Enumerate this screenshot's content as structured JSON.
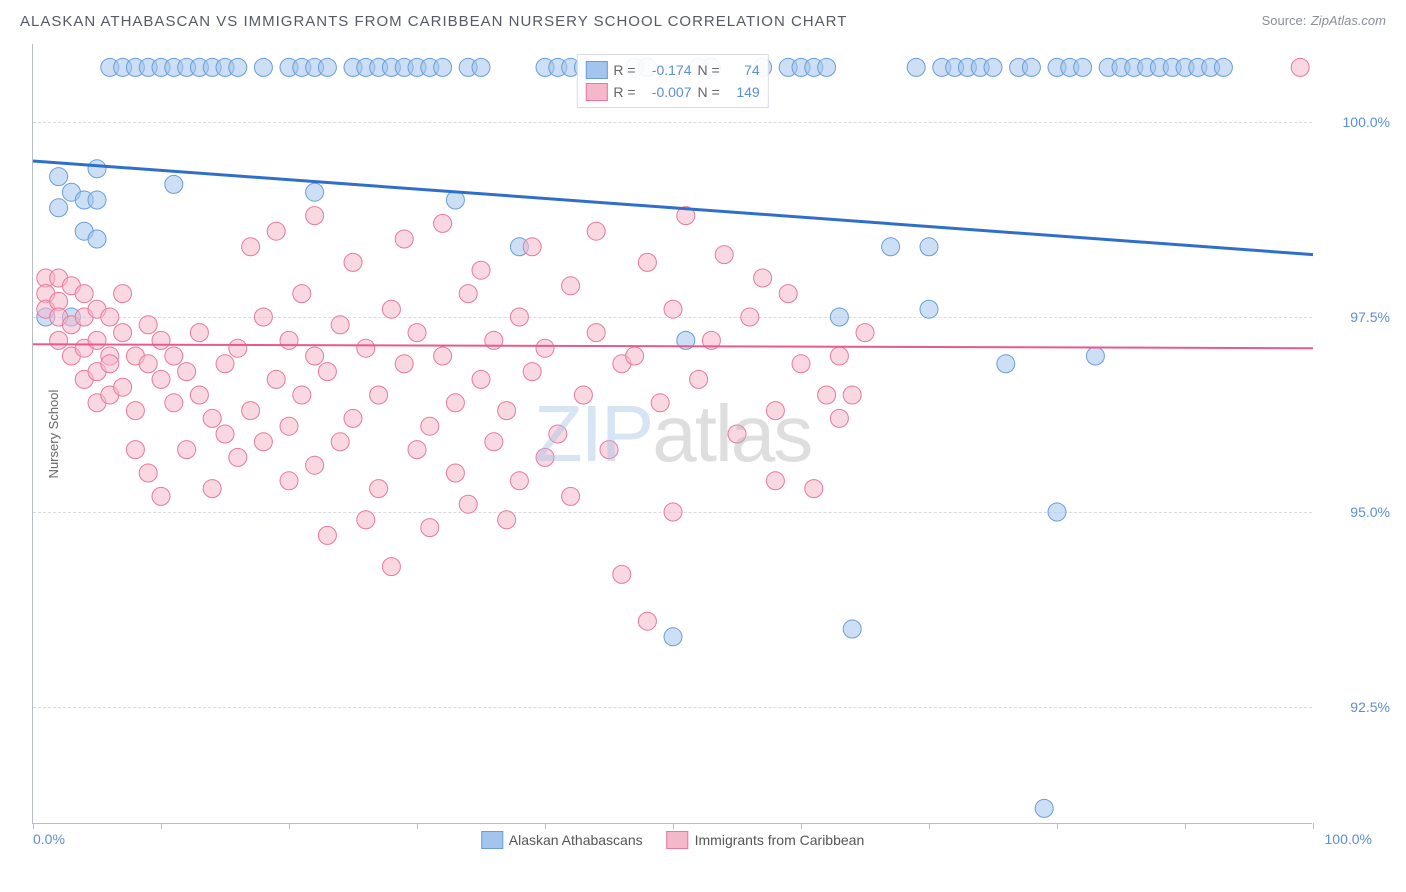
{
  "title": "ALASKAN ATHABASCAN VS IMMIGRANTS FROM CARIBBEAN NURSERY SCHOOL CORRELATION CHART",
  "source_label": "Source:",
  "source_value": "ZipAtlas.com",
  "ylabel": "Nursery School",
  "watermark_primary": "ZIP",
  "watermark_secondary": "atlas",
  "chart": {
    "type": "scatter",
    "xlim": [
      0,
      100
    ],
    "ylim": [
      91,
      101
    ],
    "yticks": [
      92.5,
      95.0,
      97.5,
      100.0
    ],
    "ytick_labels": [
      "92.5%",
      "95.0%",
      "97.5%",
      "100.0%"
    ],
    "xtick_left": "0.0%",
    "xtick_right": "100.0%",
    "xtick_marks": [
      0,
      10,
      20,
      30,
      40,
      50,
      60,
      70,
      80,
      90,
      100
    ],
    "grid_color": "#d8dbe0",
    "axis_color": "#b8bcc4",
    "background_color": "#ffffff",
    "series": [
      {
        "name": "Alaskan Athabascans",
        "color_fill": "#a3c4ec",
        "color_stroke": "#6a9ed8",
        "fill_opacity": 0.55,
        "marker_radius": 9,
        "regression": {
          "y_at_x0": 99.5,
          "y_at_x100": 98.3,
          "stroke": "#2f6fc9",
          "width": 3
        },
        "R": "-0.174",
        "N": "74",
        "points": [
          [
            1,
            97.5
          ],
          [
            2,
            98.9
          ],
          [
            2,
            99.3
          ],
          [
            3,
            99.1
          ],
          [
            3,
            97.5
          ],
          [
            4,
            99.0
          ],
          [
            4,
            98.6
          ],
          [
            5,
            99.0
          ],
          [
            5,
            98.5
          ],
          [
            5,
            99.4
          ],
          [
            6,
            100.7
          ],
          [
            7,
            100.7
          ],
          [
            8,
            100.7
          ],
          [
            9,
            100.7
          ],
          [
            10,
            100.7
          ],
          [
            11,
            100.7
          ],
          [
            11,
            99.2
          ],
          [
            12,
            100.7
          ],
          [
            13,
            100.7
          ],
          [
            14,
            100.7
          ],
          [
            15,
            100.7
          ],
          [
            16,
            100.7
          ],
          [
            18,
            100.7
          ],
          [
            20,
            100.7
          ],
          [
            21,
            100.7
          ],
          [
            22,
            99.1
          ],
          [
            22,
            100.7
          ],
          [
            23,
            100.7
          ],
          [
            25,
            100.7
          ],
          [
            26,
            100.7
          ],
          [
            27,
            100.7
          ],
          [
            28,
            100.7
          ],
          [
            29,
            100.7
          ],
          [
            30,
            100.7
          ],
          [
            31,
            100.7
          ],
          [
            32,
            100.7
          ],
          [
            33,
            99.0
          ],
          [
            34,
            100.7
          ],
          [
            35,
            100.7
          ],
          [
            38,
            98.4
          ],
          [
            40,
            100.7
          ],
          [
            41,
            100.7
          ],
          [
            42,
            100.7
          ],
          [
            43,
            100.7
          ],
          [
            47,
            100.7
          ],
          [
            48,
            100.7
          ],
          [
            50,
            93.4
          ],
          [
            51,
            97.2
          ],
          [
            52,
            100.7
          ],
          [
            53,
            100.7
          ],
          [
            57,
            100.7
          ],
          [
            59,
            100.7
          ],
          [
            60,
            100.7
          ],
          [
            61,
            100.7
          ],
          [
            62,
            100.7
          ],
          [
            63,
            97.5
          ],
          [
            64,
            93.5
          ],
          [
            67,
            98.4
          ],
          [
            69,
            100.7
          ],
          [
            70,
            98.4
          ],
          [
            70,
            97.6
          ],
          [
            71,
            100.7
          ],
          [
            72,
            100.7
          ],
          [
            73,
            100.7
          ],
          [
            74,
            100.7
          ],
          [
            75,
            100.7
          ],
          [
            76,
            96.9
          ],
          [
            77,
            100.7
          ],
          [
            78,
            100.7
          ],
          [
            79,
            91.2
          ],
          [
            80,
            100.7
          ],
          [
            80,
            95.0
          ],
          [
            81,
            100.7
          ],
          [
            82,
            100.7
          ],
          [
            83,
            97.0
          ],
          [
            84,
            100.7
          ],
          [
            85,
            100.7
          ],
          [
            86,
            100.7
          ],
          [
            87,
            100.7
          ],
          [
            88,
            100.7
          ],
          [
            89,
            100.7
          ],
          [
            90,
            100.7
          ],
          [
            91,
            100.7
          ],
          [
            92,
            100.7
          ],
          [
            93,
            100.7
          ]
        ]
      },
      {
        "name": "Immigrants from Caribbean",
        "color_fill": "#f4b8ca",
        "color_stroke": "#e878a0",
        "fill_opacity": 0.55,
        "marker_radius": 9,
        "regression": {
          "y_at_x0": 97.15,
          "y_at_x100": 97.1,
          "stroke": "#e85a8f",
          "width": 2
        },
        "R": "-0.007",
        "N": "149",
        "points": [
          [
            1,
            98.0
          ],
          [
            1,
            97.8
          ],
          [
            1,
            97.6
          ],
          [
            2,
            98.0
          ],
          [
            2,
            97.7
          ],
          [
            2,
            97.5
          ],
          [
            2,
            97.2
          ],
          [
            3,
            97.9
          ],
          [
            3,
            97.4
          ],
          [
            3,
            97.0
          ],
          [
            4,
            97.8
          ],
          [
            4,
            97.5
          ],
          [
            4,
            97.1
          ],
          [
            4,
            96.7
          ],
          [
            5,
            97.6
          ],
          [
            5,
            97.2
          ],
          [
            5,
            96.8
          ],
          [
            5,
            96.4
          ],
          [
            6,
            97.5
          ],
          [
            6,
            97.0
          ],
          [
            6,
            96.5
          ],
          [
            6,
            96.9
          ],
          [
            7,
            97.3
          ],
          [
            7,
            96.6
          ],
          [
            7,
            97.8
          ],
          [
            8,
            97.0
          ],
          [
            8,
            96.3
          ],
          [
            8,
            95.8
          ],
          [
            9,
            96.9
          ],
          [
            9,
            97.4
          ],
          [
            9,
            95.5
          ],
          [
            10,
            96.7
          ],
          [
            10,
            97.2
          ],
          [
            10,
            95.2
          ],
          [
            11,
            96.4
          ],
          [
            11,
            97.0
          ],
          [
            12,
            96.8
          ],
          [
            12,
            95.8
          ],
          [
            13,
            96.5
          ],
          [
            13,
            97.3
          ],
          [
            14,
            96.2
          ],
          [
            14,
            95.3
          ],
          [
            15,
            96.9
          ],
          [
            15,
            96.0
          ],
          [
            16,
            97.1
          ],
          [
            16,
            95.7
          ],
          [
            17,
            98.4
          ],
          [
            17,
            96.3
          ],
          [
            18,
            97.5
          ],
          [
            18,
            95.9
          ],
          [
            19,
            96.7
          ],
          [
            19,
            98.6
          ],
          [
            20,
            97.2
          ],
          [
            20,
            95.4
          ],
          [
            20,
            96.1
          ],
          [
            21,
            97.8
          ],
          [
            21,
            96.5
          ],
          [
            22,
            98.8
          ],
          [
            22,
            97.0
          ],
          [
            22,
            95.6
          ],
          [
            23,
            96.8
          ],
          [
            23,
            94.7
          ],
          [
            24,
            97.4
          ],
          [
            24,
            95.9
          ],
          [
            25,
            96.2
          ],
          [
            25,
            98.2
          ],
          [
            26,
            94.9
          ],
          [
            26,
            97.1
          ],
          [
            27,
            96.5
          ],
          [
            27,
            95.3
          ],
          [
            28,
            97.6
          ],
          [
            28,
            94.3
          ],
          [
            29,
            96.9
          ],
          [
            29,
            98.5
          ],
          [
            30,
            95.8
          ],
          [
            30,
            97.3
          ],
          [
            31,
            96.1
          ],
          [
            31,
            94.8
          ],
          [
            32,
            97.0
          ],
          [
            32,
            98.7
          ],
          [
            33,
            95.5
          ],
          [
            33,
            96.4
          ],
          [
            34,
            97.8
          ],
          [
            34,
            95.1
          ],
          [
            35,
            96.7
          ],
          [
            35,
            98.1
          ],
          [
            36,
            95.9
          ],
          [
            36,
            97.2
          ],
          [
            37,
            94.9
          ],
          [
            37,
            96.3
          ],
          [
            38,
            97.5
          ],
          [
            38,
            95.4
          ],
          [
            39,
            98.4
          ],
          [
            39,
            96.8
          ],
          [
            40,
            95.7
          ],
          [
            40,
            97.1
          ],
          [
            41,
            96.0
          ],
          [
            42,
            97.9
          ],
          [
            42,
            95.2
          ],
          [
            43,
            96.5
          ],
          [
            44,
            98.6
          ],
          [
            44,
            97.3
          ],
          [
            45,
            95.8
          ],
          [
            46,
            96.9
          ],
          [
            46,
            94.2
          ],
          [
            47,
            97.0
          ],
          [
            48,
            98.2
          ],
          [
            48,
            93.6
          ],
          [
            49,
            96.4
          ],
          [
            50,
            97.6
          ],
          [
            50,
            95.0
          ],
          [
            51,
            98.8
          ],
          [
            52,
            96.7
          ],
          [
            53,
            97.2
          ],
          [
            54,
            98.3
          ],
          [
            55,
            96.0
          ],
          [
            56,
            97.5
          ],
          [
            57,
            98.0
          ],
          [
            58,
            96.3
          ],
          [
            58,
            95.4
          ],
          [
            59,
            97.8
          ],
          [
            60,
            96.9
          ],
          [
            61,
            95.3
          ],
          [
            62,
            96.5
          ],
          [
            63,
            97.0
          ],
          [
            63,
            96.2
          ],
          [
            64,
            96.5
          ],
          [
            65,
            97.3
          ],
          [
            99,
            100.7
          ]
        ]
      }
    ]
  },
  "bottom_legend": [
    {
      "label": "Alaskan Athabascans",
      "fill": "#a3c4ec",
      "stroke": "#6a9ed8"
    },
    {
      "label": "Immigrants from Caribbean",
      "fill": "#f4b8ca",
      "stroke": "#e878a0"
    }
  ],
  "stats_legend": {
    "r_label": "R =",
    "n_label": "N ="
  }
}
